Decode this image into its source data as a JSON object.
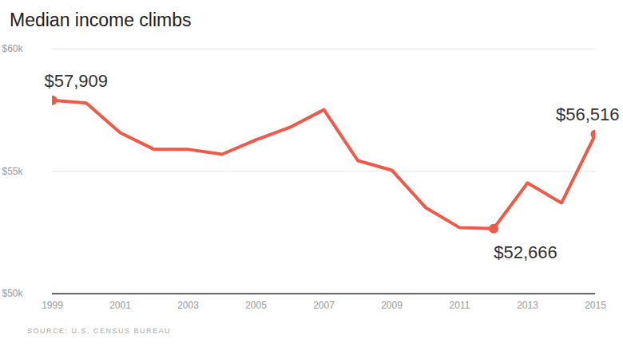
{
  "chart_data": {
    "type": "line",
    "title": "Median income climbs",
    "source": "SOURCE: U.S. CENSUS BUREAU",
    "x": [
      1999,
      2000,
      2001,
      2002,
      2003,
      2004,
      2005,
      2006,
      2007,
      2008,
      2009,
      2010,
      2011,
      2012,
      2013,
      2014,
      2015
    ],
    "values": [
      57909,
      57790,
      56580,
      55900,
      55900,
      55700,
      56290,
      56800,
      57520,
      55440,
      55050,
      53520,
      52700,
      52666,
      54530,
      53710,
      56516
    ],
    "value_labels": [
      "$57,909",
      null,
      null,
      null,
      null,
      null,
      null,
      null,
      null,
      null,
      null,
      null,
      null,
      "$52,666",
      null,
      null,
      "$56,516"
    ],
    "color": "#ef5a48",
    "marker": "circle",
    "grid": true,
    "xlim": [
      1999,
      2015
    ],
    "xticks": [
      1999,
      2001,
      2003,
      2005,
      2007,
      2009,
      2011,
      2013,
      2015
    ],
    "ylim": [
      50000,
      60000
    ],
    "yticks": [
      {
        "value": 50000,
        "label": "$50k"
      },
      {
        "value": 55000,
        "label": "$55k"
      },
      {
        "value": 60000,
        "label": "$60k"
      }
    ]
  }
}
